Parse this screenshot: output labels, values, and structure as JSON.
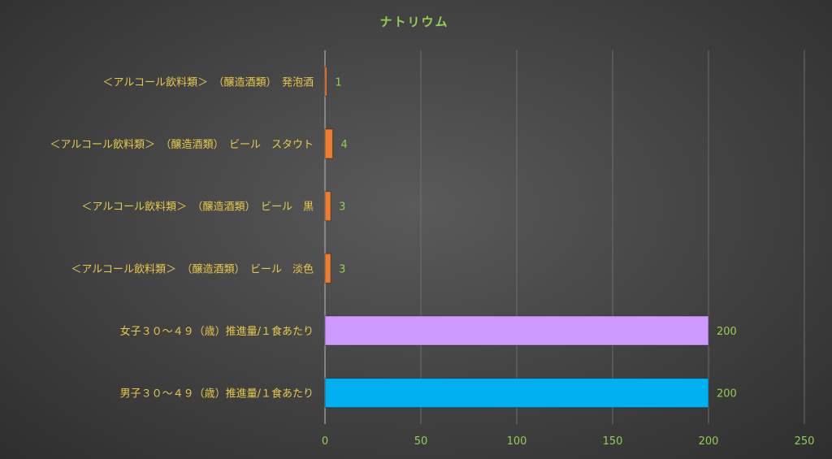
{
  "chart_data": {
    "type": "bar",
    "orientation": "horizontal",
    "title": "ナトリウム",
    "categories": [
      "＜アルコール飲料類＞　（醸造酒類）　発泡酒",
      "＜アルコール飲料類＞　（醸造酒類）　ビール　スタウト",
      "＜アルコール飲料類＞　（醸造酒類）　ビール　黒",
      "＜アルコール飲料類＞　（醸造酒類）　ビール　淡色",
      "女子３０～４９（歳）推進量/１食あたり",
      "男子３０～４９（歳）推進量/１食あたり"
    ],
    "values": [
      1,
      4,
      3,
      3,
      200,
      200
    ],
    "colors": [
      "#ed7d31",
      "#ed7d31",
      "#ed7d31",
      "#ed7d31",
      "#cc99ff",
      "#00b0f0"
    ],
    "xlim": [
      0,
      250
    ],
    "xticks": [
      0,
      50,
      100,
      150,
      200,
      250
    ],
    "grid": true,
    "legend": "none"
  }
}
